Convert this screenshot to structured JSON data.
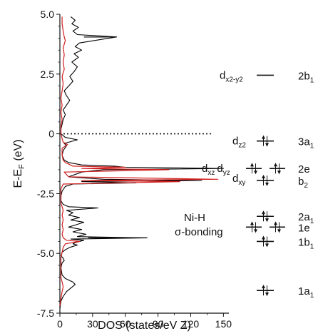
{
  "chart_data": {
    "type": "line",
    "xlabel": "DOS (states/eV Z)",
    "ylabel_main": "E-E",
    "ylabel_sub": "F",
    "ylabel_unit": " (eV)",
    "xlim": [
      0,
      155
    ],
    "ylim": [
      -7.5,
      5.0
    ],
    "xticks": [
      0,
      30,
      60,
      90,
      120,
      150
    ],
    "yticks": [
      5.0,
      2.5,
      0,
      -2.5,
      -5.0,
      -7.5
    ],
    "ytick_labels": [
      "5.0",
      "2.5",
      "0",
      "-2.5",
      "-5.0",
      "-7.5"
    ],
    "fermi_level": 0,
    "series": [
      {
        "color": "#000000",
        "points": [
          [
            0,
            -7.3
          ],
          [
            1,
            -7.0
          ],
          [
            3,
            -6.8
          ],
          [
            6,
            -6.6
          ],
          [
            10,
            -6.45
          ],
          [
            14,
            -6.3
          ],
          [
            12,
            -6.2
          ],
          [
            5,
            -6.05
          ],
          [
            2,
            -5.9
          ],
          [
            1,
            -5.6
          ],
          [
            2,
            -5.4
          ],
          [
            4,
            -5.3
          ],
          [
            3,
            -5.2
          ],
          [
            1,
            -5.1
          ],
          [
            2,
            -4.95
          ],
          [
            5,
            -4.85
          ],
          [
            9,
            -4.75
          ],
          [
            16,
            -4.65
          ],
          [
            12,
            -4.6
          ],
          [
            14,
            -4.55
          ],
          [
            22,
            -4.45
          ],
          [
            10,
            -4.4
          ],
          [
            80,
            -4.35
          ],
          [
            16,
            -4.3
          ],
          [
            24,
            -4.2
          ],
          [
            12,
            -4.1
          ],
          [
            20,
            -4.0
          ],
          [
            8,
            -3.9
          ],
          [
            15,
            -3.8
          ],
          [
            22,
            -3.7
          ],
          [
            10,
            -3.6
          ],
          [
            18,
            -3.5
          ],
          [
            8,
            -3.4
          ],
          [
            12,
            -3.3
          ],
          [
            6,
            -3.2
          ],
          [
            35,
            -3.1
          ],
          [
            8,
            -3.05
          ],
          [
            3,
            -2.95
          ],
          [
            1,
            -2.8
          ],
          [
            1,
            -2.6
          ],
          [
            2,
            -2.4
          ],
          [
            5,
            -2.2
          ],
          [
            12,
            -2.1
          ],
          [
            70,
            -2.05
          ],
          [
            20,
            -2.0
          ],
          [
            130,
            -1.95
          ],
          [
            40,
            -1.9
          ],
          [
            8,
            -1.8
          ],
          [
            20,
            -1.6
          ],
          [
            40,
            -1.5
          ],
          [
            150,
            -1.45
          ],
          [
            60,
            -1.4
          ],
          [
            50,
            -1.35
          ],
          [
            20,
            -1.3
          ],
          [
            8,
            -1.2
          ],
          [
            4,
            -1.1
          ],
          [
            2,
            -0.9
          ],
          [
            3,
            -0.7
          ],
          [
            6,
            -0.5
          ],
          [
            4,
            -0.4
          ],
          [
            16,
            -0.25
          ],
          [
            5,
            -0.15
          ],
          [
            1,
            0.0
          ],
          [
            1,
            0.2
          ],
          [
            2,
            0.4
          ],
          [
            3,
            0.6
          ],
          [
            5,
            0.8
          ],
          [
            3,
            1.0
          ],
          [
            6,
            1.2
          ],
          [
            9,
            1.4
          ],
          [
            6,
            1.6
          ],
          [
            4,
            1.8
          ],
          [
            8,
            2.0
          ],
          [
            12,
            2.2
          ],
          [
            9,
            2.4
          ],
          [
            13,
            2.6
          ],
          [
            16,
            2.8
          ],
          [
            11,
            3.0
          ],
          [
            17,
            3.2
          ],
          [
            13,
            3.35
          ],
          [
            20,
            3.5
          ],
          [
            14,
            3.65
          ],
          [
            18,
            3.8
          ],
          [
            52,
            4.05
          ],
          [
            16,
            4.15
          ],
          [
            12,
            4.3
          ],
          [
            17,
            4.45
          ],
          [
            11,
            4.6
          ],
          [
            14,
            4.75
          ],
          [
            10,
            4.9
          ]
        ]
      },
      {
        "color": "#d21f1f",
        "points": [
          [
            0,
            -7.2
          ],
          [
            1,
            -6.9
          ],
          [
            2,
            -6.6
          ],
          [
            3,
            -6.4
          ],
          [
            2,
            -6.2
          ],
          [
            1,
            -6.0
          ],
          [
            1,
            -5.5
          ],
          [
            1,
            -5.2
          ],
          [
            2,
            -4.95
          ],
          [
            3,
            -4.75
          ],
          [
            5,
            -4.6
          ],
          [
            18,
            -4.5
          ],
          [
            6,
            -4.45
          ],
          [
            3,
            -4.35
          ],
          [
            2,
            -4.2
          ],
          [
            3,
            -4.0
          ],
          [
            2,
            -3.8
          ],
          [
            3,
            -3.6
          ],
          [
            2,
            -3.4
          ],
          [
            3,
            -3.2
          ],
          [
            2,
            -3.05
          ],
          [
            1,
            -2.9
          ],
          [
            1,
            -2.6
          ],
          [
            1,
            -2.3
          ],
          [
            3,
            -2.1
          ],
          [
            110,
            -2.0
          ],
          [
            20,
            -1.95
          ],
          [
            145,
            -1.9
          ],
          [
            8,
            -1.8
          ],
          [
            4,
            -1.6
          ],
          [
            100,
            -1.5
          ],
          [
            20,
            -1.45
          ],
          [
            60,
            -1.4
          ],
          [
            12,
            -1.35
          ],
          [
            5,
            -1.2
          ],
          [
            3,
            -1.1
          ],
          [
            2,
            -0.9
          ],
          [
            2,
            -0.6
          ],
          [
            7,
            -0.45
          ],
          [
            3,
            -0.35
          ],
          [
            2,
            -0.2
          ],
          [
            1,
            0.0
          ],
          [
            1,
            0.3
          ],
          [
            2,
            0.6
          ],
          [
            1,
            0.9
          ],
          [
            2,
            1.2
          ],
          [
            1,
            1.5
          ],
          [
            2,
            1.8
          ],
          [
            3,
            2.1
          ],
          [
            2,
            2.4
          ],
          [
            4,
            2.7
          ],
          [
            3,
            3.0
          ],
          [
            4,
            3.3
          ],
          [
            3,
            3.6
          ],
          [
            5,
            3.9
          ],
          [
            4,
            4.05
          ],
          [
            3,
            4.3
          ],
          [
            2,
            4.6
          ],
          [
            2,
            4.9
          ]
        ]
      }
    ],
    "annotation_lines": [
      {
        "y": 4.05,
        "x0": 22,
        "x1": 52
      },
      {
        "y": -4.35,
        "x0": 26,
        "x1": 80
      }
    ],
    "orbitals": [
      {
        "name": "d",
        "sub": "x2-y2",
        "y": 2.45,
        "sym": "2b",
        "symsub": "1",
        "electrons": 0,
        "levels": 1
      },
      {
        "name": "d",
        "sub": "z2",
        "y": -0.3,
        "sym": "3a",
        "symsub": "1",
        "electrons": 2,
        "levels": 1
      },
      {
        "name": "d",
        "sub": "xz",
        "name2": "d",
        "sub2": "yz",
        "y": -1.45,
        "sym": "2e",
        "symsub": "",
        "electrons": 2,
        "levels": 2
      },
      {
        "name": "d",
        "sub": "xy",
        "y": -1.95,
        "sym": "b",
        "symsub": "2",
        "electrons": 2,
        "levels": 1
      },
      {
        "name": "",
        "sub": "",
        "y": -3.45,
        "sym": "2a",
        "symsub": "1",
        "electrons": 2,
        "levels": 1
      },
      {
        "name": "",
        "sub": "",
        "y": -3.9,
        "sym": "1e",
        "symsub": "",
        "electrons": 2,
        "levels": 2
      },
      {
        "name": "",
        "sub": "",
        "y": -4.5,
        "sym": "1b",
        "symsub": "1",
        "electrons": 2,
        "levels": 1
      },
      {
        "name": "",
        "sub": "",
        "y": -6.55,
        "sym": "1a",
        "symsub": "1",
        "electrons": 2,
        "levels": 1
      }
    ],
    "annotation_text": [
      "Ni-H",
      "σ-bonding"
    ]
  }
}
